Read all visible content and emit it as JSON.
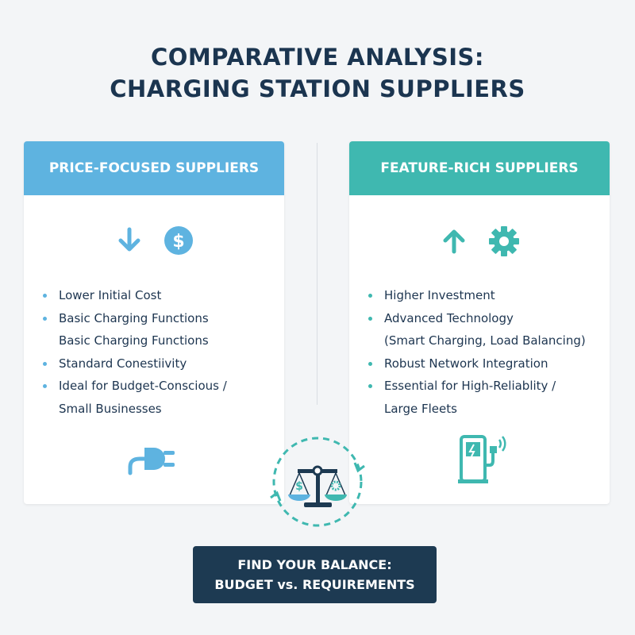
{
  "title": {
    "line1": "COMPARATIVE ANALYSIS:",
    "line2": "CHARGING STATION SUPPLIERS"
  },
  "colors": {
    "price": "#5eb3e0",
    "feature": "#3fb8b0",
    "navy": "#1d3a52"
  },
  "left": {
    "header": "PRICE-FOCUSED SUPPLIERS",
    "icons": [
      "arrow-down-icon",
      "dollar-icon",
      "plug-icon"
    ],
    "items": [
      "Lower Initial Cost",
      "Basic Charging Functions",
      "Basic Charging Functions",
      "Standard Conestiivity",
      "Ideal for Budget-Conscious /",
      "Small Businesses"
    ]
  },
  "right": {
    "header": "FEATURE-RICH SUPPLIERS",
    "icons": [
      "arrow-up-icon",
      "gear-icon",
      "ev-charger-icon"
    ],
    "items": [
      "Higher Investment",
      "Advanced Technology",
      "(Smart Charging, Load Balancing)",
      "Robust Network Integration",
      "Essential for High-Reliablity /",
      "Large Fleets"
    ]
  },
  "center": {
    "icon": "balance-scale-icon"
  },
  "cta": {
    "line1": "FIND YOUR BALANCE:",
    "line2": "BUDGET vs. REQUIREMENTS"
  }
}
